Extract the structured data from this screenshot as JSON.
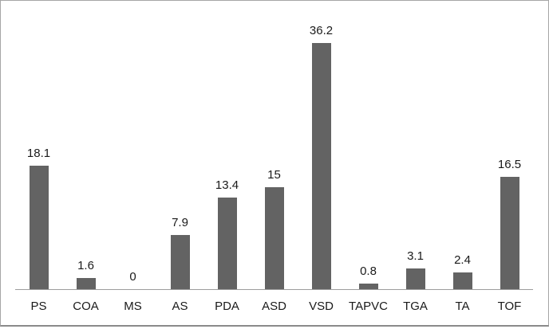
{
  "chart_data": {
    "type": "bar",
    "categories": [
      "PS",
      "COA",
      "MS",
      "AS",
      "PDA",
      "ASD",
      "VSD",
      "TAPVC",
      "TGA",
      "TA",
      "TOF"
    ],
    "values": [
      18.1,
      1.6,
      0,
      7.9,
      13.4,
      15,
      36.2,
      0.8,
      3.1,
      2.4,
      16.5
    ],
    "data_labels": [
      "18.1",
      "1.6",
      "0",
      "7.9",
      "13.4",
      "15",
      "36.2",
      "0.8",
      "3.1",
      "2.4",
      "16.5"
    ],
    "title": "",
    "xlabel": "",
    "ylabel": "",
    "ylim": [
      0,
      40
    ],
    "grid": false,
    "legend_position": "none",
    "data_labels_shown": true,
    "bar_color": "#636363",
    "axis_color": "#9d9d9d",
    "label_color": "#1a1a1a",
    "frame_border_color": "#a6a6a6"
  }
}
